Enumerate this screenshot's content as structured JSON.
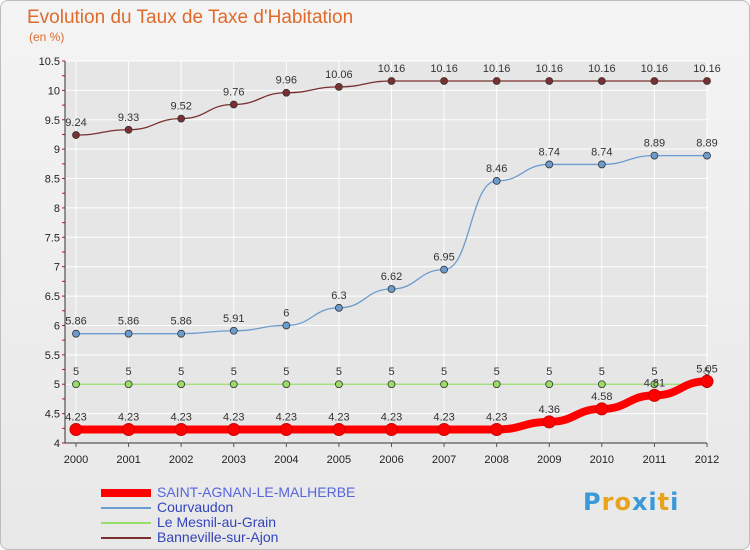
{
  "header": {
    "title": "Evolution du Taux de Taxe d'Habitation",
    "subtitle": "(en %)"
  },
  "logo": {
    "text": "Proxiti",
    "colors": [
      "#3a9ad9",
      "#e8a21c",
      "#e8a21c",
      "#3a9ad9",
      "#3a9ad9",
      "#e8a21c",
      "#3a9ad9"
    ]
  },
  "colors": {
    "title": "#e06a2a",
    "axis_label": "#000000",
    "grid": "#ffffff",
    "tick_marks": "#d01010"
  },
  "chart_data": {
    "type": "line",
    "title": "Evolution du Taux de Taxe d'Habitation",
    "ylabel": "(en %)",
    "xlabel": "",
    "x": [
      2000,
      2001,
      2002,
      2003,
      2004,
      2005,
      2006,
      2007,
      2008,
      2009,
      2010,
      2011,
      2012
    ],
    "ylim": [
      4,
      10.5
    ],
    "yticks": [
      4,
      4.5,
      5,
      5.5,
      6,
      6.5,
      7,
      7.5,
      8,
      8.5,
      9,
      9.5,
      10,
      10.5
    ],
    "grid": true,
    "legend_position": "bottom-left",
    "series": [
      {
        "name": "SAINT-AGNAN-LE-MALHERBE",
        "color": "#ff0000",
        "values": [
          4.23,
          4.23,
          4.23,
          4.23,
          4.23,
          4.23,
          4.23,
          4.23,
          4.23,
          4.36,
          4.58,
          4.81,
          5.05
        ],
        "labels": [
          "4.23",
          "4.23",
          "4.23",
          "4.23",
          "4.23",
          "4.23",
          "4.23",
          "4.23",
          "4.23",
          "4.36",
          "4.58",
          "4.81",
          "5.05"
        ]
      },
      {
        "name": "Courvaudon",
        "color": "#6b9ccf",
        "values": [
          5.86,
          5.86,
          5.86,
          5.91,
          6,
          6.3,
          6.62,
          6.95,
          8.46,
          8.74,
          8.74,
          8.89,
          8.89
        ],
        "labels": [
          "5.86",
          "5.86",
          "5.86",
          "5.91",
          "6",
          "6.3",
          "6.62",
          "6.95",
          "8.46",
          "8.74",
          "8.74",
          "8.89",
          "8.89"
        ]
      },
      {
        "name": "Le Mesnil-au-Grain",
        "color": "#99dd66",
        "values": [
          5,
          5,
          5,
          5,
          5,
          5,
          5,
          5,
          5,
          5,
          5,
          5,
          5
        ],
        "labels": [
          "5",
          "5",
          "5",
          "5",
          "5",
          "5",
          "5",
          "5",
          "5",
          "5",
          "5",
          "5",
          "5"
        ]
      },
      {
        "name": "Banneville-sur-Ajon",
        "color": "#7a3030",
        "values": [
          9.24,
          9.33,
          9.52,
          9.76,
          9.96,
          10.06,
          10.16,
          10.16,
          10.16,
          10.16,
          10.16,
          10.16,
          10.16
        ],
        "labels": [
          "9.24",
          "9.33",
          "9.52",
          "9.76",
          "9.96",
          "10.06",
          "10.16",
          "10.16",
          "10.16",
          "10.16",
          "10.16",
          "10.16",
          "10.16"
        ]
      }
    ]
  }
}
